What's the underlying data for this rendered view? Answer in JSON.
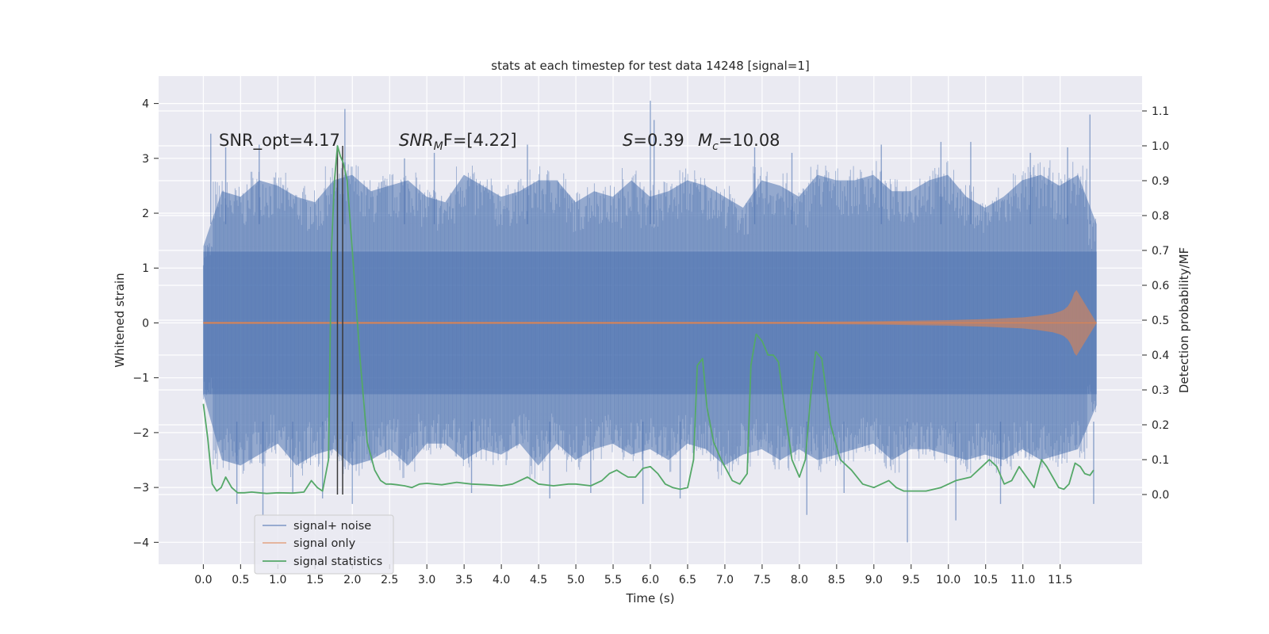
{
  "chart_data": {
    "type": "line",
    "title": "stats at each timestep for test data 14248 [signal=1]",
    "xlabel": "Time (s)",
    "ylabel_left": "Whitened strain",
    "ylabel_right": "Detection probability/MF",
    "xlim": [
      -0.6,
      12.6
    ],
    "ylim_left": [
      -4.4,
      4.5
    ],
    "ylim_right": [
      -0.2,
      1.2
    ],
    "xticks": [
      0.0,
      0.5,
      1.0,
      1.5,
      2.0,
      2.5,
      3.0,
      3.5,
      4.0,
      4.5,
      5.0,
      5.5,
      6.0,
      6.5,
      7.0,
      7.5,
      8.0,
      8.5,
      9.0,
      9.5,
      10.0,
      10.5,
      11.0,
      11.5
    ],
    "xtick_labels": [
      "0.0",
      "0.5",
      "1.0",
      "1.5",
      "2.0",
      "2.5",
      "3.0",
      "3.5",
      "4.0",
      "4.5",
      "5.0",
      "5.5",
      "6.0",
      "6.5",
      "7.0",
      "7.5",
      "8.0",
      "8.5",
      "9.0",
      "9.5",
      "10.0",
      "10.5",
      "11.0",
      "11.5"
    ],
    "yticks_left": [
      -4,
      -3,
      -2,
      -1,
      0,
      1,
      2,
      3,
      4
    ],
    "ytick_labels_left": [
      "−4",
      "−3",
      "−2",
      "−1",
      "0",
      "1",
      "2",
      "3",
      "4"
    ],
    "yticks_right": [
      0.0,
      0.1,
      0.2,
      0.3,
      0.4,
      0.5,
      0.6,
      0.7,
      0.8,
      0.9,
      1.0,
      1.1
    ],
    "ytick_labels_right": [
      "0.0",
      "0.1",
      "0.2",
      "0.3",
      "0.4",
      "0.5",
      "0.6",
      "0.7",
      "0.8",
      "0.9",
      "1.0",
      "1.1"
    ],
    "grid": true,
    "legend_position": "lower-left",
    "annotations": {
      "snr_opt": "SNR_opt=4.17",
      "snr_mf_main": "SNR",
      "snr_mf_sub": "M",
      "snr_mf_rest": "F=[4.22]",
      "s_main": "S",
      "s_rest": "=0.39",
      "mc_main": "M",
      "mc_sub": "c",
      "mc_rest": "=10.08"
    },
    "vertical_markers_x": [
      1.8,
      1.87
    ],
    "noise_envelope": {
      "x_range": [
        0.0,
        11.99
      ],
      "upper": [
        1.4,
        2.4,
        2.3,
        2.6,
        2.5,
        2.3,
        2.2,
        2.6,
        2.7,
        2.4,
        2.5,
        2.6,
        2.3,
        2.2,
        2.7,
        2.5,
        2.3,
        2.4,
        2.6,
        2.6,
        2.2,
        2.4,
        2.3,
        2.6,
        2.3,
        2.4,
        2.6,
        2.5,
        2.3,
        2.1,
        2.6,
        2.5,
        2.3,
        2.7,
        2.6,
        2.6,
        2.7,
        2.4,
        2.4,
        2.6,
        2.7,
        2.3,
        2.1,
        2.3,
        2.6,
        2.7,
        2.5,
        2.7,
        1.8
      ],
      "lower": [
        -1.3,
        -2.5,
        -2.6,
        -2.4,
        -2.2,
        -2.6,
        -2.4,
        -2.3,
        -2.6,
        -2.5,
        -2.3,
        -2.6,
        -2.2,
        -2.2,
        -2.5,
        -2.3,
        -2.4,
        -2.2,
        -2.6,
        -2.2,
        -2.5,
        -2.3,
        -2.2,
        -2.4,
        -2.3,
        -2.5,
        -2.2,
        -2.3,
        -2.6,
        -2.4,
        -2.3,
        -2.5,
        -2.3,
        -2.5,
        -2.4,
        -2.3,
        -2.2,
        -2.5,
        -2.3,
        -2.3,
        -2.4,
        -2.5,
        -2.4,
        -2.5,
        -2.3,
        -2.5,
        -2.4,
        -2.3,
        -1.5
      ]
    },
    "noise_spikes": [
      {
        "x": 0.1,
        "y": 3.45
      },
      {
        "x": 0.3,
        "y": 3.2
      },
      {
        "x": 0.45,
        "y": -3.3
      },
      {
        "x": 0.75,
        "y": 3.25
      },
      {
        "x": 0.8,
        "y": -3.5
      },
      {
        "x": 1.2,
        "y": -3.1
      },
      {
        "x": 1.6,
        "y": -3.2
      },
      {
        "x": 1.9,
        "y": 3.9
      },
      {
        "x": 2.0,
        "y": -3.3
      },
      {
        "x": 2.7,
        "y": 3.0
      },
      {
        "x": 3.1,
        "y": 3.1
      },
      {
        "x": 3.6,
        "y": -3.1
      },
      {
        "x": 4.35,
        "y": 3.25
      },
      {
        "x": 4.65,
        "y": -3.2
      },
      {
        "x": 5.2,
        "y": -3.1
      },
      {
        "x": 5.9,
        "y": -3.3
      },
      {
        "x": 6.0,
        "y": 4.05
      },
      {
        "x": 6.05,
        "y": 3.7
      },
      {
        "x": 6.4,
        "y": -3.2
      },
      {
        "x": 7.4,
        "y": 3.2
      },
      {
        "x": 7.9,
        "y": 3.1
      },
      {
        "x": 8.1,
        "y": -3.5
      },
      {
        "x": 8.6,
        "y": -3.1
      },
      {
        "x": 9.1,
        "y": 3.25
      },
      {
        "x": 9.45,
        "y": -4.0
      },
      {
        "x": 9.9,
        "y": 3.3
      },
      {
        "x": 10.1,
        "y": -3.6
      },
      {
        "x": 10.3,
        "y": 3.3
      },
      {
        "x": 10.7,
        "y": -3.3
      },
      {
        "x": 11.1,
        "y": 3.1
      },
      {
        "x": 11.6,
        "y": 3.2
      },
      {
        "x": 11.9,
        "y": 3.8
      },
      {
        "x": 11.95,
        "y": -3.3
      }
    ],
    "signal_only": {
      "x": [
        0.0,
        8.0,
        9.0,
        9.5,
        10.0,
        10.5,
        11.0,
        11.2,
        11.4,
        11.5,
        11.55,
        11.6,
        11.63,
        11.66,
        11.69,
        11.72,
        11.99
      ],
      "amplitude": [
        0.02,
        0.02,
        0.03,
        0.04,
        0.05,
        0.07,
        0.1,
        0.13,
        0.17,
        0.21,
        0.24,
        0.3,
        0.36,
        0.44,
        0.55,
        0.6,
        0.0
      ]
    },
    "series": [
      {
        "name": "signal+ noise",
        "color": "#4c72b0"
      },
      {
        "name": "signal only",
        "color": "#dd8452"
      },
      {
        "name": "signal statistics",
        "color": "#55a868",
        "x": [
          0.0,
          0.06,
          0.12,
          0.18,
          0.24,
          0.3,
          0.38,
          0.46,
          0.55,
          0.65,
          0.75,
          0.85,
          1.0,
          1.2,
          1.35,
          1.45,
          1.53,
          1.6,
          1.68,
          1.72,
          1.76,
          1.8,
          1.84,
          1.88,
          1.93,
          2.0,
          2.1,
          2.2,
          2.3,
          2.38,
          2.45,
          2.52,
          2.6,
          2.7,
          2.8,
          2.9,
          3.0,
          3.2,
          3.4,
          3.6,
          3.8,
          4.0,
          4.15,
          4.25,
          4.35,
          4.5,
          4.7,
          4.9,
          5.0,
          5.2,
          5.35,
          5.45,
          5.55,
          5.62,
          5.7,
          5.8,
          5.9,
          6.0,
          6.1,
          6.2,
          6.3,
          6.4,
          6.5,
          6.58,
          6.63,
          6.7,
          6.76,
          6.85,
          6.95,
          7.1,
          7.2,
          7.3,
          7.35,
          7.42,
          7.5,
          7.58,
          7.65,
          7.72,
          7.8,
          7.9,
          8.0,
          8.08,
          8.15,
          8.22,
          8.3,
          8.42,
          8.55,
          8.7,
          8.85,
          9.0,
          9.1,
          9.2,
          9.3,
          9.4,
          9.5,
          9.7,
          9.9,
          10.1,
          10.3,
          10.45,
          10.55,
          10.65,
          10.75,
          10.85,
          10.95,
          11.05,
          11.15,
          11.25,
          11.32,
          11.4,
          11.48,
          11.55,
          11.62,
          11.7,
          11.77,
          11.83,
          11.9,
          11.95
        ],
        "values": [
          0.26,
          0.16,
          0.03,
          0.01,
          0.02,
          0.05,
          0.02,
          0.005,
          0.005,
          0.007,
          0.005,
          0.003,
          0.005,
          0.004,
          0.007,
          0.04,
          0.02,
          0.01,
          0.1,
          0.7,
          0.9,
          1.0,
          0.97,
          0.95,
          0.9,
          0.7,
          0.4,
          0.15,
          0.07,
          0.04,
          0.03,
          0.03,
          0.028,
          0.025,
          0.02,
          0.03,
          0.032,
          0.028,
          0.035,
          0.03,
          0.028,
          0.025,
          0.03,
          0.04,
          0.05,
          0.03,
          0.025,
          0.03,
          0.03,
          0.025,
          0.04,
          0.06,
          0.07,
          0.06,
          0.05,
          0.05,
          0.075,
          0.08,
          0.06,
          0.03,
          0.02,
          0.015,
          0.02,
          0.1,
          0.37,
          0.39,
          0.25,
          0.15,
          0.1,
          0.04,
          0.03,
          0.06,
          0.37,
          0.46,
          0.44,
          0.4,
          0.4,
          0.38,
          0.25,
          0.1,
          0.05,
          0.1,
          0.28,
          0.41,
          0.39,
          0.2,
          0.1,
          0.07,
          0.03,
          0.02,
          0.03,
          0.04,
          0.02,
          0.01,
          0.01,
          0.01,
          0.02,
          0.04,
          0.05,
          0.08,
          0.1,
          0.08,
          0.03,
          0.04,
          0.08,
          0.05,
          0.02,
          0.1,
          0.08,
          0.05,
          0.02,
          0.015,
          0.03,
          0.09,
          0.08,
          0.06,
          0.055,
          0.07
        ]
      }
    ]
  }
}
